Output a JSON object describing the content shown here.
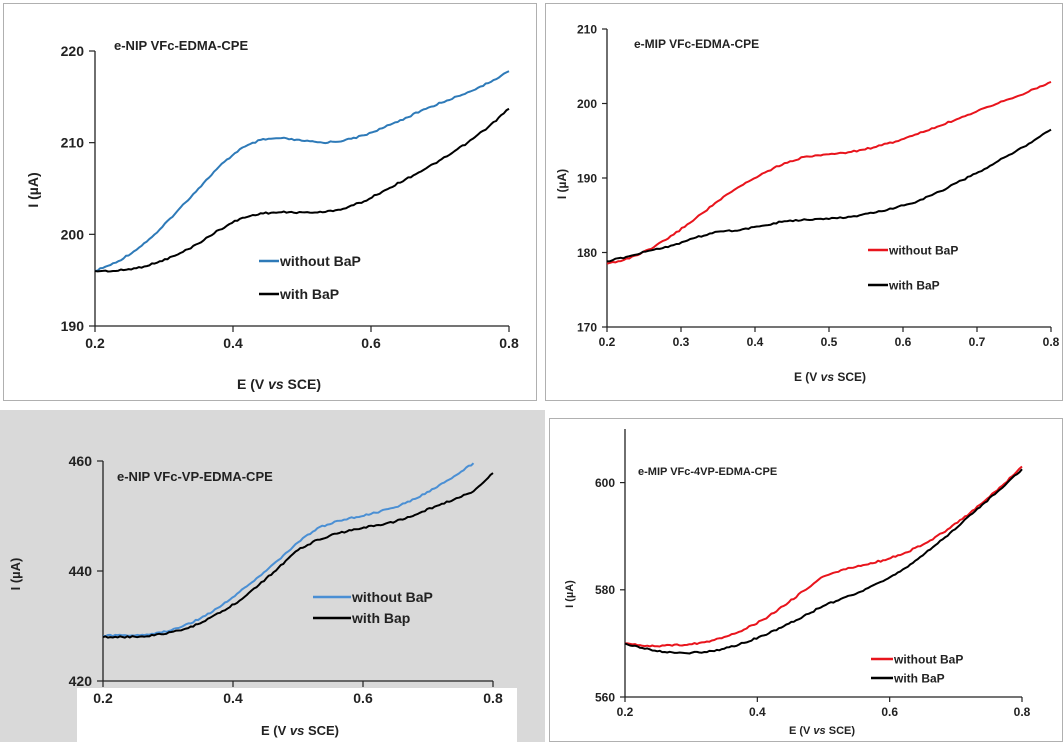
{
  "chart_data": [
    {
      "type": "line",
      "title": "e-NIP VFc-EDMA-CPE",
      "xlabel": "E (V vs SCE)",
      "ylabel": "I (µA)",
      "xlim": [
        0.2,
        0.8
      ],
      "ylim": [
        190,
        220
      ],
      "xticks": [
        "0.2",
        "0.4",
        "0.6",
        "0.8"
      ],
      "yticks": [
        "190",
        "200",
        "210",
        "220"
      ],
      "legend_position": "center",
      "series": [
        {
          "name": "without BaP",
          "color": "#2e7ab8",
          "x": [
            0.2,
            0.23,
            0.26,
            0.29,
            0.32,
            0.35,
            0.38,
            0.41,
            0.44,
            0.47,
            0.5,
            0.53,
            0.56,
            0.59,
            0.62,
            0.65,
            0.68,
            0.71,
            0.74,
            0.77,
            0.8
          ],
          "y": [
            196.0,
            196.9,
            198.3,
            200.2,
            202.6,
            205.0,
            207.4,
            209.3,
            210.3,
            210.5,
            210.2,
            210.0,
            210.2,
            210.8,
            211.7,
            212.7,
            213.7,
            214.6,
            215.5,
            216.5,
            217.8
          ]
        },
        {
          "name": "with BaP",
          "color": "#000000",
          "x": [
            0.2,
            0.23,
            0.26,
            0.29,
            0.32,
            0.35,
            0.38,
            0.41,
            0.44,
            0.47,
            0.5,
            0.53,
            0.56,
            0.59,
            0.62,
            0.65,
            0.68,
            0.71,
            0.74,
            0.77,
            0.8
          ],
          "y": [
            196.0,
            196.0,
            196.3,
            196.9,
            197.8,
            199.0,
            200.5,
            201.7,
            202.3,
            202.4,
            202.4,
            202.4,
            202.8,
            203.6,
            204.8,
            206.0,
            207.2,
            208.5,
            210.0,
            211.7,
            213.7
          ]
        }
      ]
    },
    {
      "type": "line",
      "title": "e-MIP VFc-EDMA-CPE",
      "xlabel": "E (V vs SCE)",
      "ylabel": "I (µA)",
      "xlim": [
        0.2,
        0.8
      ],
      "ylim": [
        170,
        210
      ],
      "xticks": [
        "0.2",
        "0.3",
        "0.4",
        "0.5",
        "0.6",
        "0.7",
        "0.8"
      ],
      "yticks": [
        "170",
        "180",
        "190",
        "200",
        "210"
      ],
      "legend_position": "right",
      "series": [
        {
          "name": "without BaP",
          "color": "#e8141c",
          "x": [
            0.2,
            0.23,
            0.26,
            0.29,
            0.32,
            0.35,
            0.38,
            0.41,
            0.44,
            0.47,
            0.5,
            0.53,
            0.56,
            0.59,
            0.62,
            0.65,
            0.68,
            0.71,
            0.74,
            0.77,
            0.8
          ],
          "y": [
            178.5,
            179.2,
            180.5,
            182.4,
            184.6,
            186.9,
            188.9,
            190.6,
            192.0,
            192.9,
            193.2,
            193.5,
            194.1,
            194.9,
            195.9,
            197.0,
            198.2,
            199.4,
            200.5,
            201.6,
            202.9
          ]
        },
        {
          "name": "with BaP",
          "color": "#000000",
          "x": [
            0.2,
            0.23,
            0.26,
            0.29,
            0.32,
            0.35,
            0.38,
            0.41,
            0.44,
            0.47,
            0.5,
            0.53,
            0.56,
            0.59,
            0.62,
            0.65,
            0.68,
            0.71,
            0.74,
            0.77,
            0.8
          ],
          "y": [
            178.8,
            179.5,
            180.3,
            181.0,
            182.0,
            182.8,
            183.0,
            183.6,
            184.2,
            184.4,
            184.5,
            184.8,
            185.3,
            186.0,
            186.9,
            188.2,
            189.7,
            191.2,
            192.9,
            194.6,
            196.5
          ]
        }
      ]
    },
    {
      "type": "line",
      "title": "e-NIP VFc-VP-EDMA-CPE",
      "xlabel": "E (V vs SCE)",
      "ylabel": "I (µA)",
      "xlim": [
        0.2,
        0.8
      ],
      "ylim": [
        420,
        460
      ],
      "xticks": [
        "0.2",
        "0.4",
        "0.6",
        "0.8"
      ],
      "yticks": [
        "420",
        "440",
        "460"
      ],
      "legend_position": "center-right",
      "series": [
        {
          "name": "without BaP",
          "color": "#4a8fd4",
          "x": [
            0.2,
            0.23,
            0.26,
            0.29,
            0.32,
            0.35,
            0.38,
            0.41,
            0.44,
            0.47,
            0.5,
            0.53,
            0.56,
            0.59,
            0.62,
            0.65,
            0.68,
            0.71,
            0.74,
            0.77
          ],
          "y": [
            428.2,
            428.3,
            428.4,
            428.8,
            429.8,
            431.4,
            433.5,
            436.2,
            439.0,
            442.0,
            445.2,
            447.8,
            449.1,
            449.8,
            450.6,
            451.6,
            453.1,
            455.0,
            457.2,
            459.6
          ]
        },
        {
          "name": "with Bap",
          "color": "#000000",
          "x": [
            0.2,
            0.23,
            0.26,
            0.29,
            0.32,
            0.35,
            0.38,
            0.41,
            0.44,
            0.47,
            0.5,
            0.53,
            0.56,
            0.59,
            0.62,
            0.65,
            0.68,
            0.71,
            0.74,
            0.77,
            0.8
          ],
          "y": [
            428.0,
            428.0,
            428.1,
            428.5,
            429.2,
            430.5,
            432.4,
            434.6,
            437.5,
            440.6,
            443.8,
            445.7,
            446.8,
            447.6,
            448.3,
            449.0,
            450.2,
            451.7,
            453.0,
            454.5,
            457.8
          ]
        }
      ]
    },
    {
      "type": "line",
      "title": "e-MIP VFc-4VP-EDMA-CPE",
      "xlabel": "E (V vs SCE)",
      "ylabel": "I (µA)",
      "xlim": [
        0.2,
        0.8
      ],
      "ylim": [
        560,
        610
      ],
      "xticks": [
        "0.2",
        "0.4",
        "0.6",
        "0.8"
      ],
      "yticks": [
        "560",
        "580",
        "600"
      ],
      "legend_position": "bottom-right",
      "series": [
        {
          "name": "without BaP",
          "color": "#e8141c",
          "x": [
            0.2,
            0.23,
            0.26,
            0.29,
            0.32,
            0.35,
            0.38,
            0.41,
            0.44,
            0.47,
            0.5,
            0.53,
            0.56,
            0.59,
            0.62,
            0.65,
            0.68,
            0.71,
            0.74,
            0.77,
            0.8
          ],
          "y": [
            570.0,
            569.5,
            569.6,
            569.7,
            570.2,
            571.2,
            572.6,
            574.5,
            577.0,
            579.8,
            582.5,
            583.8,
            584.6,
            585.5,
            586.7,
            588.4,
            590.6,
            593.2,
            596.2,
            599.4,
            603.0
          ]
        },
        {
          "name": "with BaP",
          "color": "#000000",
          "x": [
            0.2,
            0.23,
            0.26,
            0.29,
            0.32,
            0.35,
            0.38,
            0.41,
            0.44,
            0.47,
            0.5,
            0.53,
            0.56,
            0.59,
            0.62,
            0.65,
            0.68,
            0.71,
            0.74,
            0.77,
            0.8
          ],
          "y": [
            570.0,
            569.0,
            568.4,
            568.2,
            568.4,
            569.0,
            570.1,
            571.5,
            573.2,
            575.1,
            577.0,
            578.5,
            579.8,
            581.6,
            583.8,
            586.4,
            589.4,
            592.6,
            595.9,
            599.0,
            602.5
          ]
        }
      ]
    }
  ]
}
